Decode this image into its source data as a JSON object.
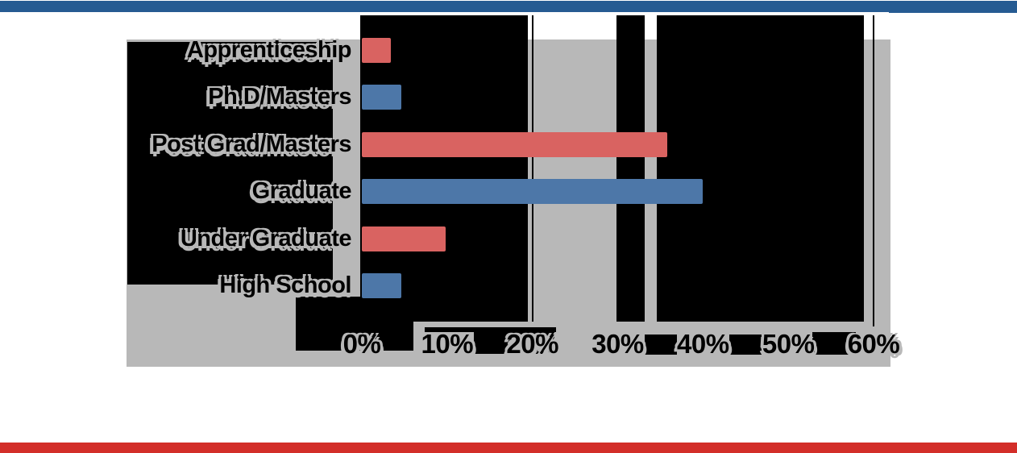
{
  "header_stripe": {
    "color": "#265b92"
  },
  "footer_stripe": {
    "color": "#d32e29"
  },
  "chart_background_color": "#b8b8b8",
  "chart_data": {
    "type": "bar",
    "orientation": "horizontal",
    "title": "",
    "categories": [
      "Apprenticeship",
      "Ph.D/Masters",
      "Post Grad/Masters",
      "Graduate",
      "Under Graduate",
      "High School"
    ],
    "values": [
      3.4,
      4.6,
      35.8,
      40,
      9.8,
      4.6
    ],
    "point_colors": [
      "#d96361",
      "#4d77a8",
      "#d96361",
      "#4d77a8",
      "#d96361",
      "#4d77a8"
    ],
    "bar_red": "#d96361",
    "bar_blue": "#4d77a8",
    "x_ticks": [
      "0%",
      "10%",
      "20%",
      "30%",
      "40%",
      "50%",
      "60%"
    ],
    "x_tick_values": [
      0,
      10,
      20,
      30,
      40,
      50,
      60
    ],
    "xlim": [
      0,
      60
    ],
    "grid": "vertical-black-lines",
    "legend": "none"
  }
}
